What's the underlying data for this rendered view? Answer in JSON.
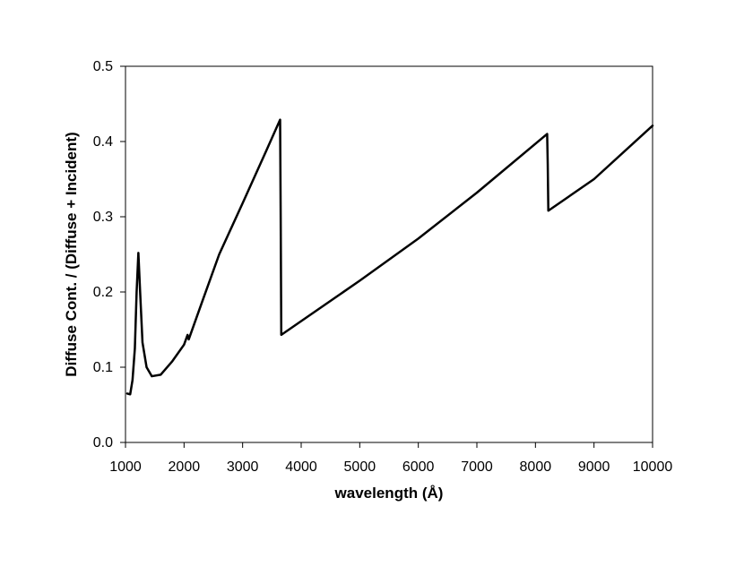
{
  "chart_data": {
    "type": "line",
    "title": "",
    "xlabel": "wavelength (Å)",
    "ylabel": "Diffuse Cont. / (Diffuse + Incident)",
    "xlim": [
      1000,
      10000
    ],
    "ylim": [
      0,
      0.5
    ],
    "x_ticks": [
      1000,
      2000,
      3000,
      4000,
      5000,
      6000,
      7000,
      8000,
      9000,
      10000
    ],
    "y_ticks": [
      0.0,
      0.1,
      0.2,
      0.3,
      0.4,
      0.5
    ],
    "x_tick_labels": [
      "1000",
      "2000",
      "3000",
      "4000",
      "5000",
      "6000",
      "7000",
      "8000",
      "9000",
      "10000"
    ],
    "y_tick_labels": [
      "0.0",
      "0.1",
      "0.2",
      "0.3",
      "0.4",
      "0.5"
    ],
    "grid": false,
    "legend": "none",
    "line_color": "#000000",
    "series": [
      {
        "x": [
          1030,
          1080,
          1120,
          1160,
          1190,
          1220,
          1250,
          1290,
          1360,
          1450,
          1600,
          1800,
          2000,
          2060,
          2080,
          2300,
          2600,
          3000,
          3400,
          3640,
          3650,
          3660,
          5000,
          6000,
          7000,
          8200,
          8210,
          8220,
          9000,
          10000
        ],
        "y": [
          0.065,
          0.064,
          0.083,
          0.125,
          0.2,
          0.252,
          0.2,
          0.133,
          0.1,
          0.088,
          0.09,
          0.108,
          0.13,
          0.143,
          0.137,
          0.185,
          0.25,
          0.318,
          0.387,
          0.429,
          0.3,
          0.143,
          0.215,
          0.271,
          0.332,
          0.41,
          0.37,
          0.308,
          0.35,
          0.421
        ]
      }
    ]
  }
}
